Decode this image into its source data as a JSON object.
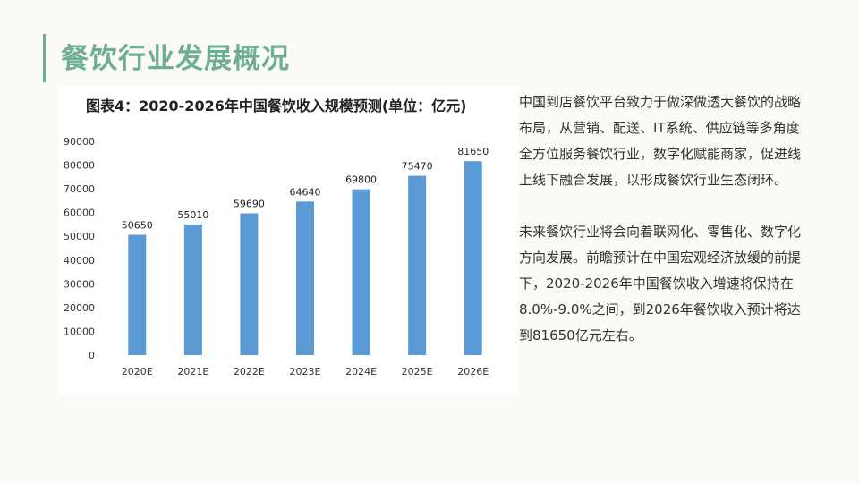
{
  "slide": {
    "title": "餐饮行业发展概况",
    "accent_color": "#6fae96",
    "paragraphs": [
      "中国到店餐饮平台致力于做深做透大餐饮的战略布局，从营销、配送、IT系统、供应链等多角度全方位服务餐饮行业，数字化赋能商家，促进线上线下融合发展，以形成餐饮行业生态闭环。",
      "未来餐饮行业将会向着联网化、零售化、数字化方向发展。前瞻预计在中国宏观经济放缓的前提下，2020-2026年中国餐饮收入增速将保持在8.0%-9.0%之间，到2026年餐饮收入预计将达到81650亿元左右。"
    ]
  },
  "chart_data": {
    "type": "bar",
    "title": "图表4：2020-2026年中国餐饮收入规模预测(单位：亿元)",
    "categories": [
      "2020E",
      "2021E",
      "2022E",
      "2023E",
      "2024E",
      "2025E",
      "2026E"
    ],
    "values": [
      50650,
      55010,
      59690,
      64640,
      69800,
      75470,
      81650
    ],
    "yticks": [
      0,
      10000,
      20000,
      30000,
      40000,
      50000,
      60000,
      70000,
      80000,
      90000
    ],
    "ylim": [
      0,
      90000
    ],
    "xlabel": "",
    "ylabel": "",
    "grid": false,
    "legend": false,
    "bar_color": "#5b9bd5"
  }
}
